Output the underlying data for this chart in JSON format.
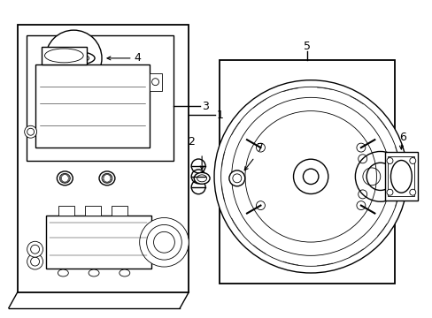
{
  "background_color": "#ffffff",
  "line_color": "#000000",
  "fig_width": 4.89,
  "fig_height": 3.6,
  "dpi": 100,
  "lw_main": 1.0,
  "lw_thin": 0.6,
  "lw_thick": 1.3
}
